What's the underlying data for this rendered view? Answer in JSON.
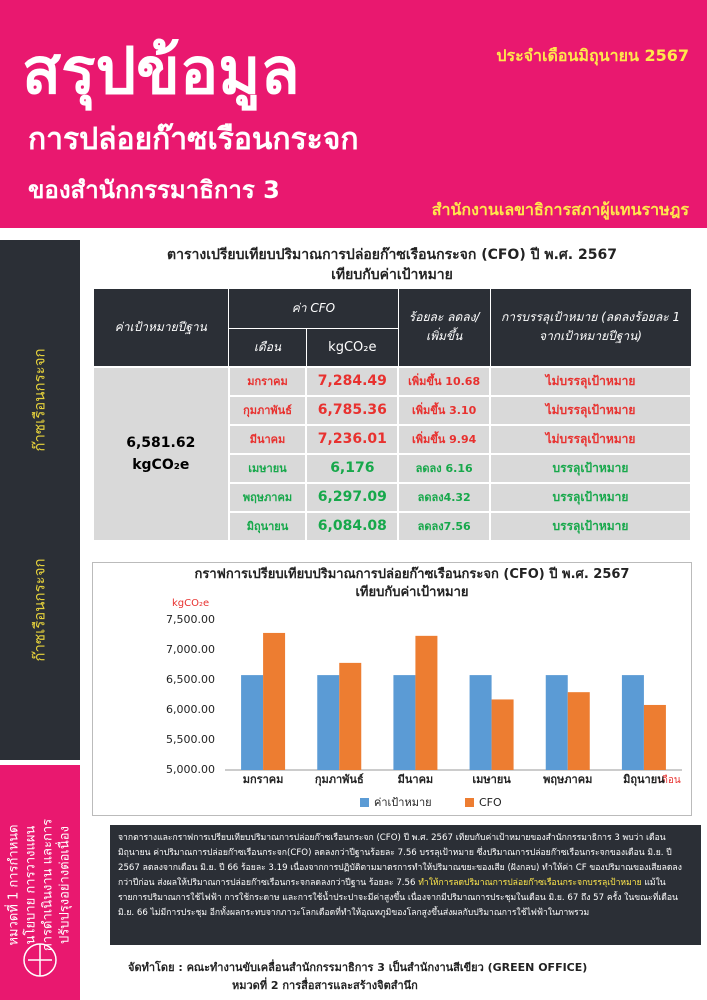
{
  "header": {
    "title": "สรุปข้อมูล",
    "subtitle1": "การปล่อยก๊าซเรือนกระจก",
    "subtitle2": "ของสำนักกรรมาธิการ 3",
    "date": "ประจำเดือนมิถุนายน 2567",
    "office": "สำนักงานเลขาธิการสภาผู้แทนราษฎร"
  },
  "sidebar": {
    "label1": "ก๊าซเรือนกระจก",
    "label2": "ก๊าซเรือนกระจก",
    "category": [
      "หมวดที่ 1 การกำหนด",
      "นโยบาย การวางแผน",
      "การดำเนินงาน และการ",
      "ปรับปรุงอย่างต่อเนื่อง"
    ]
  },
  "table": {
    "title1": "ตารางเปรียบเทียบปริมาณการปล่อยก๊าซเรือนกระจก (CFO) ปี พ.ศ. 2567",
    "title2": "เทียบกับค่าเป้าหมาย",
    "headers": {
      "base": "ค่าเป้าหมายปีฐาน",
      "cfo": "ค่า CFO",
      "month": "เดือน",
      "unit": "kgCO₂e",
      "percent": "ร้อยละ ลดลง/เพิ่มขึ้น",
      "status": "การบรรลุเป้าหมาย (ลดลงร้อยละ 1 จากเป้าหมายปีฐาน)"
    },
    "base_value": "6,581.62",
    "base_unit": "kgCO₂e",
    "rows": [
      {
        "month": "มกราคม",
        "value": "7,284.49",
        "change": "เพิ่มขึ้น 10.68",
        "status": "ไม่บรรลุเป้าหมาย",
        "color": "#e8312f"
      },
      {
        "month": "กุมภาพันธ์",
        "value": "6,785.36",
        "change": "เพิ่มขึ้น 3.10",
        "status": "ไม่บรรลุเป้าหมาย",
        "color": "#e8312f"
      },
      {
        "month": "มีนาคม",
        "value": "7,236.01",
        "change": "เพิ่มขึ้น 9.94",
        "status": "ไม่บรรลุเป้าหมาย",
        "color": "#e8312f"
      },
      {
        "month": "เมษายน",
        "value": "6,176",
        "change": "ลดลง 6.16",
        "status": "บรรลุเป้าหมาย",
        "color": "#17a84b"
      },
      {
        "month": "พฤษภาคม",
        "value": "6,297.09",
        "change": "ลดลง4.32",
        "status": "บรรลุเป้าหมาย",
        "color": "#17a84b"
      },
      {
        "month": "มิถุนายน",
        "value": "6,084.08",
        "change": "ลดลง7.56",
        "status": "บรรลุเป้าหมาย",
        "color": "#17a84b"
      }
    ]
  },
  "chart_data": {
    "type": "bar",
    "title": "กราฟการเปรียบเทียบปริมาณการปล่อยก๊าซเรือนกระจก (CFO) ปี พ.ศ. 2567",
    "subtitle": "เทียบกับค่าเป้าหมาย",
    "y_label": "kgCO₂e",
    "x_label": "เดือน",
    "categories": [
      "มกราคม",
      "กุมภาพันธ์",
      "มีนาคม",
      "เมษายน",
      "พฤษภาคม",
      "มิถุนายน"
    ],
    "series": [
      {
        "name": "ค่าเป้าหมาย",
        "color": "#5b9bd5",
        "values": [
          6581.62,
          6581.62,
          6581.62,
          6581.62,
          6581.62,
          6581.62
        ]
      },
      {
        "name": "CFO",
        "color": "#ed7d31",
        "values": [
          7284.49,
          6785.36,
          7236.01,
          6176,
          6297.09,
          6084.08
        ]
      }
    ],
    "ylim": [
      5000,
      7500
    ],
    "yticks": [
      {
        "value": 5000,
        "label": "5,000.00"
      },
      {
        "value": 5500,
        "label": "5,500.00"
      },
      {
        "value": 6000,
        "label": "6,000.00"
      },
      {
        "value": 6500,
        "label": "6,500.00"
      },
      {
        "value": 7000,
        "label": "7,000.00"
      },
      {
        "value": 7500,
        "label": "7,500.00"
      }
    ],
    "grid": false,
    "legend": "bottom"
  },
  "summary": {
    "part1": "จากตารางและกราฟการเปรียบเทียบปริมาณการปล่อยก๊าซเรือนกระจก (CFO) ปี พ.ศ. 2567 เทียบกับค่าเป้าหมายของสำนักกรรมาธิการ 3 พบว่า เดือนมิถุนายน ค่าปริมาณการปล่อยก๊าซเรือนกระจก(CFO) ลดลงกว่าปีฐานร้อยละ 7.56 บรรลุเป้าหมาย ซึ่งปริมาณการปล่อยก๊าซเรือนกระจกของเดือน มิ.ย. ปี 2567 ลดลงจากเดือน มิ.ย. ปี 66 ร้อยละ 3.19 เนื่องจากการปฏิบัติตามมาตรการทำให้ปริมาณขยะของเสีย (ฝังกลบ) ทำให้ค่า CF ของปริมาณของเสียลดลงกว่าปีก่อน ส่งผลให้ปริมาณการปล่อยก๊าซเรือนกระจกลดลงกว่าปีฐาน ร้อยละ 7.56",
    "highlight": "ทำให้การลดปริมาณการปล่อยก๊าซเรือนกระจกบรรลุเป้าหมาย",
    "part2": "แม้ในรายการปริมาณการใช้ไฟฟ้า การใช้กระดาษ และการใช้น้ำประปาจะมีค่าสูงขึ้น เนื่องจากมีปริมาณการประชุมในเดือน มิ.ย. 67 ถึง 57 ครั้ง ในขณะที่เดือน มิ.ย. 66 ไม่มีการประชุม อีกทั้งผลกระทบจากภาวะโลกเดือดที่ทำให้อุณหภูมิของโลกสูงขึ้นส่งผลกับปริมาณการใช้ไฟฟ้าในภาพรวม"
  },
  "footer": {
    "line1": "จัดทำโดย : คณะทำงานขับเคลื่อนสำนักกรรมาธิการ 3 เป็นสำนักงานสีเขียว (GREEN OFFICE)",
    "line2": "หมวดที่ 2 การสื่อสารและสร้างจิตสำนึก"
  }
}
